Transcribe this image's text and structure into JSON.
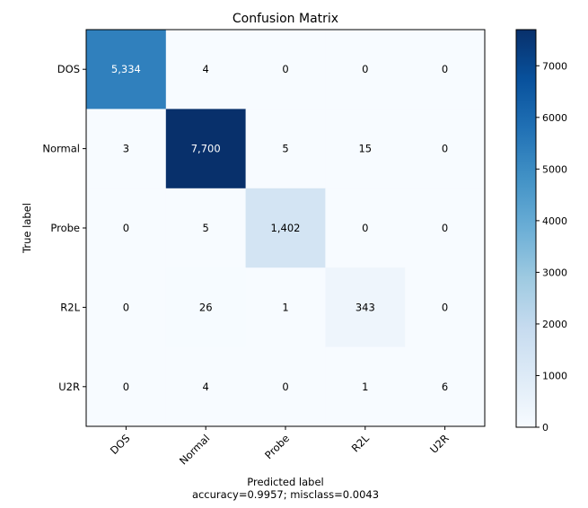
{
  "chart_data": {
    "type": "heatmap",
    "title": "Confusion Matrix",
    "xlabel": "Predicted label",
    "xlabel_sub": "accuracy=0.9957; misclass=0.0043",
    "ylabel": "True label",
    "x_categories": [
      "DOS",
      "Normal",
      "Probe",
      "R2L",
      "U2R"
    ],
    "y_categories": [
      "DOS",
      "Normal",
      "Probe",
      "R2L",
      "U2R"
    ],
    "values": [
      [
        5334,
        4,
        0,
        0,
        0
      ],
      [
        3,
        7700,
        5,
        15,
        0
      ],
      [
        0,
        5,
        1402,
        0,
        0
      ],
      [
        0,
        26,
        1,
        343,
        0
      ],
      [
        0,
        4,
        0,
        1,
        6
      ]
    ],
    "cell_labels": [
      [
        "5,334",
        "4",
        "0",
        "0",
        "0"
      ],
      [
        "3",
        "7,700",
        "5",
        "15",
        "0"
      ],
      [
        "0",
        "5",
        "1,402",
        "0",
        "0"
      ],
      [
        "0",
        "26",
        "1",
        "343",
        "0"
      ],
      [
        "0",
        "4",
        "0",
        "1",
        "6"
      ]
    ],
    "colormap": "Blues",
    "color_range": [
      0,
      7700
    ],
    "colorbar_ticks": [
      0,
      1000,
      2000,
      3000,
      4000,
      5000,
      6000,
      7000
    ],
    "colorbar_tick_labels": [
      "0",
      "1000",
      "2000",
      "3000",
      "4000",
      "5000",
      "6000",
      "7000"
    ],
    "text_color_light": "#ffffff",
    "text_color_dark": "#000000",
    "grid": false
  }
}
